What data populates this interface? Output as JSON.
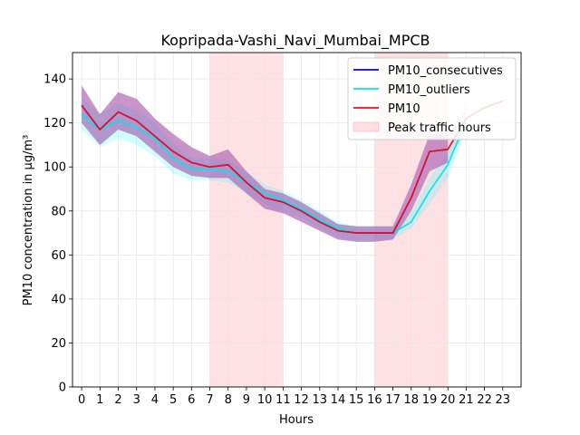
{
  "chart_data": {
    "type": "line",
    "title": "Kopripada-Vashi_Navi_Mumbai_MPCB",
    "xlabel": "Hours",
    "ylabel": "PM10 concentration in µg/m³",
    "x": [
      0,
      1,
      2,
      3,
      4,
      5,
      6,
      7,
      8,
      9,
      10,
      11,
      12,
      13,
      14,
      15,
      16,
      17,
      18,
      19,
      20,
      21,
      22,
      23
    ],
    "xlim": [
      -0.5,
      24.0
    ],
    "ylim": [
      0,
      152
    ],
    "y_ticks": [
      0,
      20,
      40,
      60,
      80,
      100,
      120,
      140
    ],
    "grid": true,
    "legend_position": "top-right",
    "highlight_regions": [
      {
        "name": "Peak traffic hours",
        "x_start": 7,
        "x_end": 11,
        "color": "#ffb0b8"
      },
      {
        "name": "Peak traffic hours",
        "x_start": 16,
        "x_end": 20,
        "color": "#ffb0b8"
      }
    ],
    "series": [
      {
        "name": "PM10_consecutives",
        "color": "#0000ee",
        "values": [
          128,
          117,
          125,
          121,
          114,
          107,
          102,
          100,
          101,
          93,
          86,
          84,
          80,
          75,
          71,
          70,
          70,
          70,
          86,
          107,
          108,
          null,
          null,
          null
        ],
        "lower": [
          120,
          110,
          117,
          114,
          107,
          100,
          96,
          95,
          95,
          88,
          81,
          79,
          75,
          71,
          67,
          66,
          66,
          67,
          80,
          98,
          102,
          null,
          null,
          null
        ],
        "upper": [
          137,
          124,
          134,
          131,
          122,
          115,
          109,
          105,
          108,
          98,
          90,
          88,
          84,
          79,
          74,
          73,
          73,
          73,
          92,
          115,
          115,
          null,
          null,
          null
        ],
        "band_color": "#9b59b6"
      },
      {
        "name": "PM10_outliers",
        "color": "#00e5ee",
        "values": [
          124,
          117,
          121,
          118,
          113,
          104,
          99,
          99,
          98,
          93,
          88,
          85,
          81,
          76,
          72,
          70,
          70,
          70,
          75,
          89,
          101,
          121,
          null,
          null
        ],
        "lower": [
          117,
          109,
          113,
          110,
          105,
          97,
          94,
          94,
          93,
          88,
          83,
          80,
          77,
          72,
          68,
          66,
          66,
          67,
          72,
          83,
          95,
          116,
          null,
          null
        ],
        "upper": [
          131,
          124,
          129,
          126,
          120,
          111,
          104,
          104,
          103,
          98,
          92,
          89,
          85,
          80,
          75,
          73,
          73,
          73,
          79,
          95,
          107,
          127,
          null,
          null
        ],
        "band_color": "#00ffff"
      },
      {
        "name": "PM10",
        "color": "#e8101e",
        "values": [
          128,
          117,
          125,
          121,
          114,
          107,
          102,
          100,
          101,
          93,
          86,
          84,
          80,
          75,
          71,
          70,
          70,
          70,
          86,
          107,
          108,
          122,
          127,
          130
        ],
        "lower": [
          120,
          110,
          117,
          114,
          107,
          100,
          96,
          95,
          95,
          88,
          81,
          79,
          75,
          71,
          67,
          66,
          66,
          67,
          80,
          98,
          102,
          116,
          null,
          null
        ],
        "upper": [
          137,
          124,
          134,
          131,
          122,
          115,
          109,
          105,
          108,
          98,
          90,
          88,
          84,
          79,
          74,
          73,
          73,
          73,
          92,
          115,
          115,
          128,
          134,
          138
        ],
        "band_color": "#ffc0cb"
      }
    ],
    "legend": [
      {
        "label": "PM10_consecutives",
        "kind": "line",
        "color": "#0000ee"
      },
      {
        "label": "PM10_outliers",
        "kind": "line",
        "color": "#00e5ee"
      },
      {
        "label": "PM10",
        "kind": "line",
        "color": "#e8101e"
      },
      {
        "label": "Peak traffic hours",
        "kind": "patch",
        "color": "#ffb0b8"
      }
    ]
  }
}
